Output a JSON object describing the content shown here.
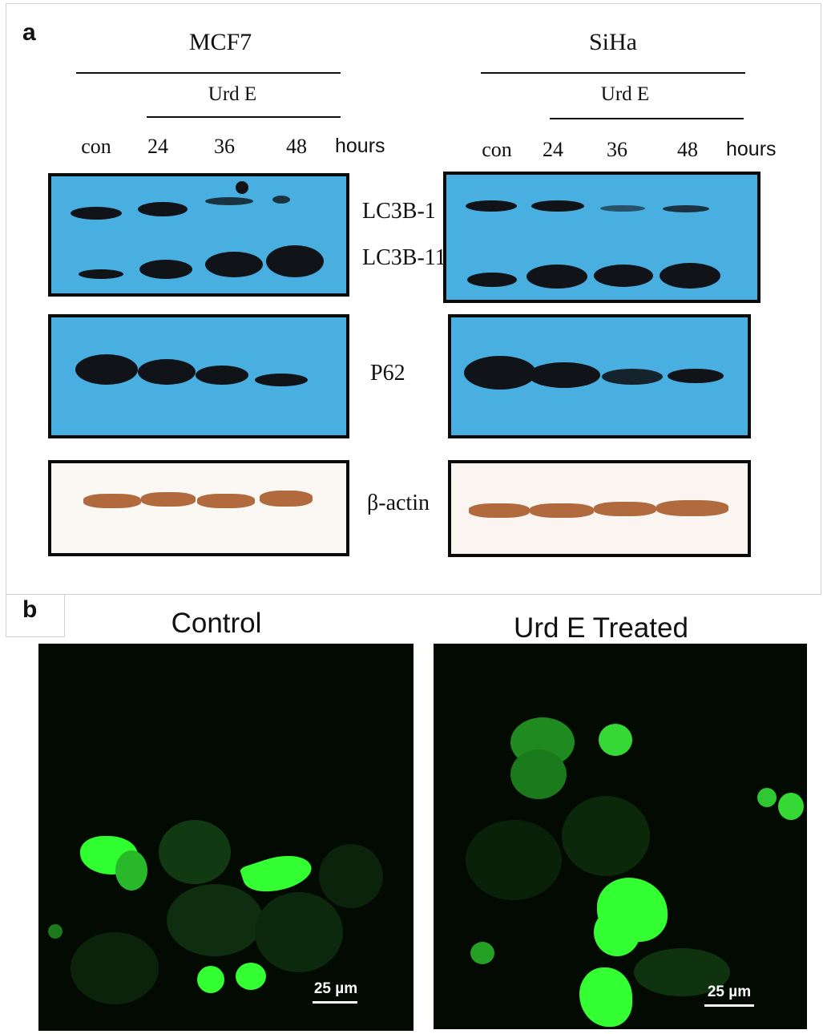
{
  "panel_a": {
    "letter": "a",
    "left": {
      "cell_line": "MCF7",
      "treatment": "Urd E",
      "lanes": [
        "con",
        "24",
        "36",
        "48"
      ],
      "unit": "hours"
    },
    "right": {
      "cell_line": "SiHa",
      "treatment": "Urd E",
      "lanes": [
        "con",
        "24",
        "36",
        "48"
      ],
      "unit": "hours"
    },
    "markers": {
      "lc3b_1": "LC3B-1",
      "lc3b_11": "LC3B-11",
      "p62": "P62",
      "actin": "β-actin"
    },
    "colors": {
      "blot_bg": "#49aee0",
      "band": "#101418",
      "actin_band": "#b06a3e"
    }
  },
  "panel_b": {
    "letter": "b",
    "control_title": "Control",
    "treated_title": "Urd E Treated",
    "scale_label": "25 µm",
    "colors": {
      "background": "#020a02",
      "fluorescence": "#2fff2f"
    }
  }
}
